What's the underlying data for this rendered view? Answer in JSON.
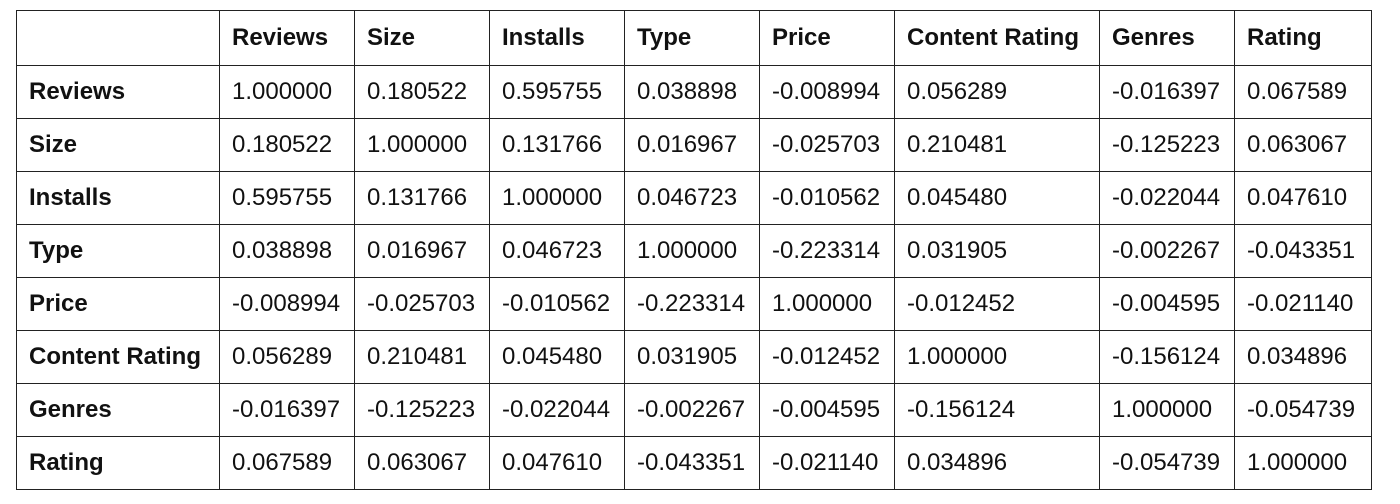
{
  "table": {
    "corner": "",
    "columns": [
      "Reviews",
      "Size",
      "Installs",
      "Type",
      "Price",
      "Content Rating",
      "Genres",
      "Rating"
    ],
    "rows": [
      {
        "label": "Reviews",
        "values": [
          "1.000000",
          "0.180522",
          "0.595755",
          "0.038898",
          "-0.008994",
          "0.056289",
          "-0.016397",
          "0.067589"
        ]
      },
      {
        "label": "Size",
        "values": [
          "0.180522",
          "1.000000",
          "0.131766",
          "0.016967",
          "-0.025703",
          "0.210481",
          "-0.125223",
          "0.063067"
        ]
      },
      {
        "label": "Installs",
        "values": [
          "0.595755",
          "0.131766",
          "1.000000",
          "0.046723",
          "-0.010562",
          "0.045480",
          "-0.022044",
          "0.047610"
        ]
      },
      {
        "label": "Type",
        "values": [
          "0.038898",
          "0.016967",
          "0.046723",
          "1.000000",
          "-0.223314",
          "0.031905",
          "-0.002267",
          "-0.043351"
        ]
      },
      {
        "label": "Price",
        "values": [
          "-0.008994",
          "-0.025703",
          "-0.010562",
          "-0.223314",
          "1.000000",
          "-0.012452",
          "-0.004595",
          "-0.021140"
        ]
      },
      {
        "label": "Content Rating",
        "values": [
          "0.056289",
          "0.210481",
          "0.045480",
          "0.031905",
          "-0.012452",
          "1.000000",
          "-0.156124",
          "0.034896"
        ]
      },
      {
        "label": "Genres",
        "values": [
          "-0.016397",
          "-0.125223",
          "-0.022044",
          "-0.002267",
          "-0.004595",
          "-0.156124",
          "1.000000",
          "-0.054739"
        ]
      },
      {
        "label": "Rating",
        "values": [
          "0.067589",
          "0.063067",
          "0.047610",
          "-0.043351",
          "-0.021140",
          "0.034896",
          "-0.054739",
          "1.000000"
        ]
      }
    ]
  }
}
